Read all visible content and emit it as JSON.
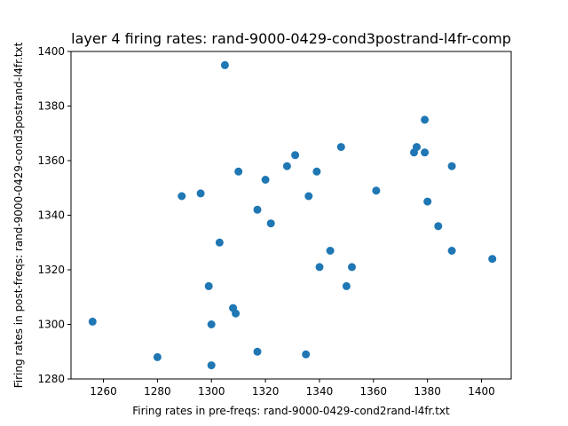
{
  "chart_data": {
    "type": "scatter",
    "title": "layer 4 firing rates: rand-9000-0429-cond3postrand-l4fr-comp",
    "xlabel": "Firing rates in pre-freqs: rand-9000-0429-cond2rand-l4fr.txt",
    "ylabel": "Firing rates in post-freqs: rand-9000-0429-cond3postrand-l4fr.txt",
    "xlim": [
      1248,
      1411
    ],
    "ylim": [
      1280,
      1400
    ],
    "xticks": [
      1260,
      1280,
      1300,
      1320,
      1340,
      1360,
      1380,
      1400
    ],
    "yticks": [
      1280,
      1300,
      1320,
      1340,
      1360,
      1380,
      1400
    ],
    "grid": false,
    "marker_color": "#1f77b4",
    "points": [
      {
        "x": 1256,
        "y": 1301
      },
      {
        "x": 1280,
        "y": 1288
      },
      {
        "x": 1289,
        "y": 1347
      },
      {
        "x": 1296,
        "y": 1348
      },
      {
        "x": 1299,
        "y": 1314
      },
      {
        "x": 1300,
        "y": 1300
      },
      {
        "x": 1300,
        "y": 1285
      },
      {
        "x": 1303,
        "y": 1330
      },
      {
        "x": 1305,
        "y": 1395
      },
      {
        "x": 1308,
        "y": 1306
      },
      {
        "x": 1309,
        "y": 1304
      },
      {
        "x": 1310,
        "y": 1356
      },
      {
        "x": 1317,
        "y": 1342
      },
      {
        "x": 1317,
        "y": 1290
      },
      {
        "x": 1320,
        "y": 1353
      },
      {
        "x": 1322,
        "y": 1337
      },
      {
        "x": 1328,
        "y": 1358
      },
      {
        "x": 1331,
        "y": 1362
      },
      {
        "x": 1335,
        "y": 1289
      },
      {
        "x": 1336,
        "y": 1347
      },
      {
        "x": 1339,
        "y": 1356
      },
      {
        "x": 1340,
        "y": 1321
      },
      {
        "x": 1344,
        "y": 1327
      },
      {
        "x": 1348,
        "y": 1365
      },
      {
        "x": 1350,
        "y": 1314
      },
      {
        "x": 1352,
        "y": 1321
      },
      {
        "x": 1361,
        "y": 1349
      },
      {
        "x": 1375,
        "y": 1363
      },
      {
        "x": 1376,
        "y": 1365
      },
      {
        "x": 1379,
        "y": 1375
      },
      {
        "x": 1379,
        "y": 1363
      },
      {
        "x": 1380,
        "y": 1345
      },
      {
        "x": 1384,
        "y": 1336
      },
      {
        "x": 1389,
        "y": 1358
      },
      {
        "x": 1389,
        "y": 1327
      },
      {
        "x": 1404,
        "y": 1324
      }
    ]
  }
}
